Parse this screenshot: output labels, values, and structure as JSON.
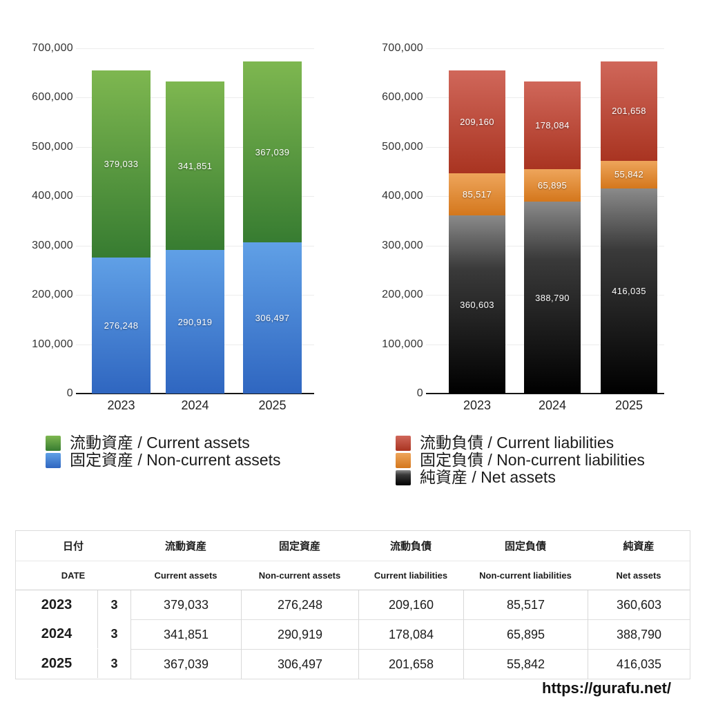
{
  "page": {
    "url": "https://gurafu.net/"
  },
  "chart_data": [
    {
      "type": "stacked_bar",
      "name": "assets-chart",
      "categories": [
        "2023",
        "2024",
        "2025"
      ],
      "y_axis": {
        "min": 0,
        "max": 700000,
        "step": 100000,
        "ticks": [
          "700,000",
          "600,000",
          "500,000",
          "400,000",
          "300,000",
          "200,000",
          "100,000",
          "0"
        ]
      },
      "series": [
        {
          "key": "current-assets",
          "legend": "流動資産 / Current assets",
          "color_top": "#7eb750",
          "color_bottom": "#377c31",
          "values": [
            379033,
            341851,
            367039
          ],
          "labels": [
            "379,033",
            "341,851",
            "367,039"
          ]
        },
        {
          "key": "non-current-assets",
          "legend": "固定資産 / Non-current assets",
          "color_top": "#60a0e6",
          "color_bottom": "#2f66c0",
          "values": [
            276248,
            290919,
            306497
          ],
          "labels": [
            "276,248",
            "290,919",
            "306,497"
          ]
        }
      ],
      "stack_bottom_to_top": [
        1,
        0
      ],
      "legend_position": "bottom-left",
      "grid": true
    },
    {
      "type": "stacked_bar",
      "name": "liabilities-chart",
      "categories": [
        "2023",
        "2024",
        "2025"
      ],
      "y_axis": {
        "min": 0,
        "max": 700000,
        "step": 100000,
        "ticks": [
          "700,000",
          "600,000",
          "500,000",
          "400,000",
          "300,000",
          "200,000",
          "100,000",
          "0"
        ]
      },
      "series": [
        {
          "key": "current-liabilities",
          "legend": "流動負債 / Current liabilities",
          "color_top": "#d0675a",
          "color_bottom": "#a93421",
          "values": [
            209160,
            178084,
            201658
          ],
          "labels": [
            "209,160",
            "178,084",
            "201,658"
          ]
        },
        {
          "key": "non-current-liabilities",
          "legend": "固定負債 / Non-current liabilities",
          "color_top": "#eea55b",
          "color_bottom": "#d4771c",
          "values": [
            85517,
            65895,
            55842
          ],
          "labels": [
            "85,517",
            "65,895",
            "55,842"
          ]
        },
        {
          "key": "net-assets",
          "legend": "純資産 / Net assets",
          "color_top": "#8a8a8a",
          "color_mid": "#3a3a3a",
          "color_bottom": "#000000",
          "values": [
            360603,
            388790,
            416035
          ],
          "labels": [
            "360,603",
            "388,790",
            "416,035"
          ]
        }
      ],
      "stack_bottom_to_top": [
        2,
        1,
        0
      ],
      "legend_position": "bottom-left",
      "grid": true
    }
  ],
  "table": {
    "header_ja": [
      "日付",
      "流動資産",
      "固定資産",
      "流動負債",
      "固定負債",
      "純資産"
    ],
    "header_en": [
      "DATE",
      "Current assets",
      "Non-current assets",
      "Current liabilities",
      "Non-current liabilities",
      "Net assets"
    ],
    "rows": [
      {
        "year": "2023",
        "month": "3",
        "values": [
          "379,033",
          "276,248",
          "209,160",
          "85,517",
          "360,603"
        ]
      },
      {
        "year": "2024",
        "month": "3",
        "values": [
          "341,851",
          "290,919",
          "178,084",
          "65,895",
          "388,790"
        ]
      },
      {
        "year": "2025",
        "month": "3",
        "values": [
          "367,039",
          "306,497",
          "201,658",
          "55,842",
          "416,035"
        ]
      }
    ]
  }
}
